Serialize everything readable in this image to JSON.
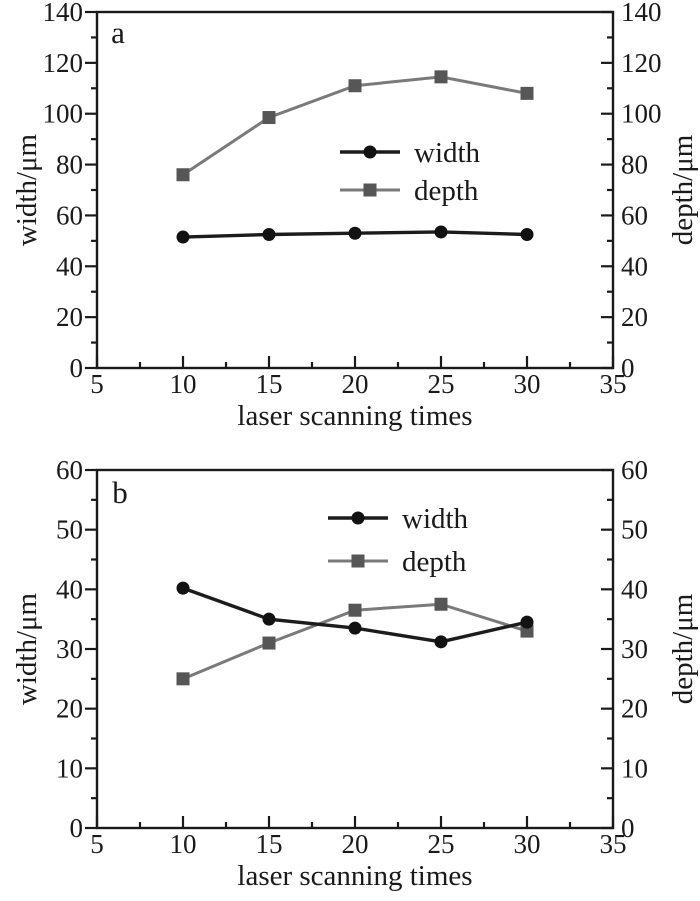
{
  "figure": {
    "background_color": "#ffffff",
    "text_color": "#1a1a1a",
    "axis_color": "#1a1a1a"
  },
  "chart_data": [
    {
      "panel_label": "a",
      "type": "line",
      "x": [
        10,
        15,
        20,
        25,
        30
      ],
      "series": [
        {
          "name": "width",
          "values": [
            51.5,
            52.5,
            53,
            53.5,
            52.5
          ],
          "line_color": "#1c1c1c",
          "marker": "circle",
          "marker_color": "#121212"
        },
        {
          "name": "depth",
          "values": [
            76,
            98.5,
            111,
            114.5,
            108
          ],
          "line_color": "#7a7a7a",
          "marker": "square",
          "marker_color": "#565656"
        }
      ],
      "xlabel": "laser scanning times",
      "ylabel_left": "width/μm",
      "ylabel_right": "depth/μm",
      "xlim": [
        5,
        35
      ],
      "ylim": [
        0,
        140
      ],
      "xticks": [
        5,
        10,
        15,
        20,
        25,
        30,
        35
      ],
      "yticks": [
        0,
        20,
        40,
        60,
        80,
        100,
        120,
        140
      ],
      "minor_xtick_step": 2.5,
      "minor_ytick_step": 10,
      "grid": false,
      "legend": {
        "entries": [
          "width",
          "depth"
        ],
        "position": "inside-center-right"
      }
    },
    {
      "panel_label": "b",
      "type": "line",
      "x": [
        10,
        15,
        20,
        25,
        30
      ],
      "series": [
        {
          "name": "width",
          "values": [
            40.2,
            35,
            33.5,
            31.2,
            34.5
          ],
          "line_color": "#1c1c1c",
          "marker": "circle",
          "marker_color": "#121212"
        },
        {
          "name": "depth",
          "values": [
            25,
            31,
            36.5,
            37.5,
            33
          ],
          "line_color": "#7a7a7a",
          "marker": "square",
          "marker_color": "#565656"
        }
      ],
      "xlabel": "laser scanning times",
      "ylabel_left": "width/μm",
      "ylabel_right": "depth/μm",
      "xlim": [
        5,
        35
      ],
      "ylim": [
        0,
        60
      ],
      "xticks": [
        5,
        10,
        15,
        20,
        25,
        30,
        35
      ],
      "yticks": [
        0,
        10,
        20,
        30,
        40,
        50,
        60
      ],
      "minor_xtick_step": 2.5,
      "minor_ytick_step": 5,
      "grid": false,
      "legend": {
        "entries": [
          "width",
          "depth"
        ],
        "position": "inside-top-center"
      }
    }
  ]
}
